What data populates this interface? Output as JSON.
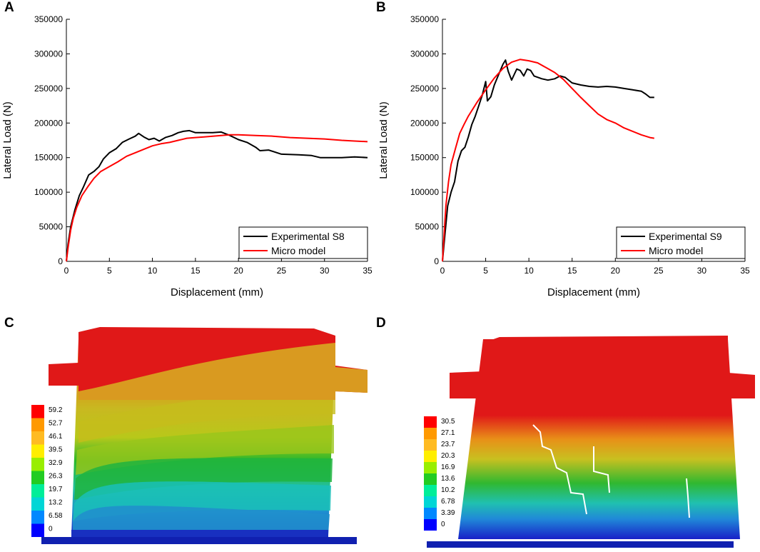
{
  "chart_data": [
    {
      "panel": "A",
      "type": "line",
      "xlabel": "Displacement (mm)",
      "ylabel": "Lateral Load (N)",
      "xlim": [
        0,
        35
      ],
      "ylim": [
        0,
        350000
      ],
      "xticks": [
        0,
        5,
        10,
        15,
        20,
        25,
        30,
        35
      ],
      "yticks": [
        0,
        50000,
        100000,
        150000,
        200000,
        250000,
        300000,
        350000
      ],
      "legend_position": "bottom-right",
      "series": [
        {
          "name": "Experimental S8",
          "color": "#000000",
          "points": [
            [
              0,
              0
            ],
            [
              0.2,
              25000
            ],
            [
              0.5,
              50000
            ],
            [
              1,
              75000
            ],
            [
              1.5,
              95000
            ],
            [
              2,
              108000
            ],
            [
              2.6,
              125000
            ],
            [
              3.2,
              130000
            ],
            [
              3.8,
              137000
            ],
            [
              4.3,
              148000
            ],
            [
              5,
              157000
            ],
            [
              5.8,
              163000
            ],
            [
              6.5,
              172000
            ],
            [
              7.3,
              177000
            ],
            [
              8,
              181000
            ],
            [
              8.4,
              185000
            ],
            [
              9,
              180000
            ],
            [
              9.6,
              176000
            ],
            [
              10.2,
              178000
            ],
            [
              10.8,
              174000
            ],
            [
              11.5,
              179000
            ],
            [
              12.3,
              182000
            ],
            [
              13,
              186000
            ],
            [
              13.6,
              188000
            ],
            [
              14.3,
              189000
            ],
            [
              15,
              186000
            ],
            [
              16,
              186000
            ],
            [
              17,
              186000
            ],
            [
              18,
              187000
            ],
            [
              19,
              182000
            ],
            [
              20,
              176000
            ],
            [
              21,
              172000
            ],
            [
              22,
              165000
            ],
            [
              22.5,
              160000
            ],
            [
              23.5,
              161000
            ],
            [
              25,
              155000
            ],
            [
              27,
              154000
            ],
            [
              28.5,
              153000
            ],
            [
              29.5,
              150000
            ],
            [
              30.5,
              150000
            ],
            [
              32,
              150000
            ],
            [
              33.5,
              151000
            ],
            [
              35,
              150000
            ]
          ]
        },
        {
          "name": "Micro model",
          "color": "#ff0000",
          "points": [
            [
              0,
              0
            ],
            [
              0.2,
              20000
            ],
            [
              0.5,
              45000
            ],
            [
              0.8,
              62000
            ],
            [
              1.2,
              78000
            ],
            [
              1.8,
              95000
            ],
            [
              2.5,
              108000
            ],
            [
              3.2,
              120000
            ],
            [
              4,
              130000
            ],
            [
              5,
              137000
            ],
            [
              6,
              144000
            ],
            [
              7,
              152000
            ],
            [
              8,
              157000
            ],
            [
              9,
              162000
            ],
            [
              10,
              167000
            ],
            [
              11,
              170000
            ],
            [
              12,
              172000
            ],
            [
              13,
              175000
            ],
            [
              14,
              178000
            ],
            [
              15,
              179000
            ],
            [
              16,
              180000
            ],
            [
              17,
              181000
            ],
            [
              18,
              182000
            ],
            [
              19,
              183000
            ],
            [
              20,
              183000
            ],
            [
              22,
              182000
            ],
            [
              24,
              181000
            ],
            [
              26,
              179000
            ],
            [
              28,
              178000
            ],
            [
              30,
              177000
            ],
            [
              32,
              175000
            ],
            [
              33.5,
              174000
            ],
            [
              35,
              173000
            ]
          ]
        }
      ]
    },
    {
      "panel": "B",
      "type": "line",
      "xlabel": "Displacement (mm)",
      "ylabel": "Lateral Load (N)",
      "xlim": [
        0,
        35
      ],
      "ylim": [
        0,
        350000
      ],
      "xticks": [
        0,
        5,
        10,
        15,
        20,
        25,
        30,
        35
      ],
      "yticks": [
        0,
        50000,
        100000,
        150000,
        200000,
        250000,
        300000,
        350000
      ],
      "legend_position": "bottom-right",
      "series": [
        {
          "name": "Experimental S9",
          "color": "#000000",
          "points": [
            [
              0,
              0
            ],
            [
              0.3,
              40000
            ],
            [
              0.6,
              80000
            ],
            [
              1,
              100000
            ],
            [
              1.4,
              115000
            ],
            [
              1.8,
              145000
            ],
            [
              2.2,
              160000
            ],
            [
              2.6,
              165000
            ],
            [
              3,
              180000
            ],
            [
              3.4,
              198000
            ],
            [
              3.8,
              210000
            ],
            [
              4.2,
              225000
            ],
            [
              4.6,
              240000
            ],
            [
              5,
              260000
            ],
            [
              5.2,
              232000
            ],
            [
              5.6,
              238000
            ],
            [
              6,
              255000
            ],
            [
              6.5,
              270000
            ],
            [
              7,
              285000
            ],
            [
              7.3,
              291000
            ],
            [
              7.6,
              275000
            ],
            [
              8,
              262000
            ],
            [
              8.3,
              270000
            ],
            [
              8.6,
              278000
            ],
            [
              9,
              276000
            ],
            [
              9.4,
              268000
            ],
            [
              9.8,
              278000
            ],
            [
              10.2,
              276000
            ],
            [
              10.6,
              268000
            ],
            [
              11.5,
              264000
            ],
            [
              12.2,
              262000
            ],
            [
              13,
              264000
            ],
            [
              13.6,
              268000
            ],
            [
              14.2,
              266000
            ],
            [
              15,
              258000
            ],
            [
              16,
              255000
            ],
            [
              17,
              253000
            ],
            [
              18,
              252000
            ],
            [
              19,
              253000
            ],
            [
              20,
              252000
            ],
            [
              21,
              250000
            ],
            [
              22,
              248000
            ],
            [
              23,
              246000
            ],
            [
              23.5,
              242000
            ],
            [
              24,
              237000
            ],
            [
              24.5,
              237000
            ]
          ]
        },
        {
          "name": "Micro model",
          "color": "#ff0000",
          "points": [
            [
              0,
              0
            ],
            [
              0.2,
              40000
            ],
            [
              0.4,
              80000
            ],
            [
              0.7,
              115000
            ],
            [
              1,
              140000
            ],
            [
              1.5,
              163000
            ],
            [
              2,
              185000
            ],
            [
              2.5,
              198000
            ],
            [
              3,
              210000
            ],
            [
              4,
              230000
            ],
            [
              5,
              248000
            ],
            [
              6,
              265000
            ],
            [
              7,
              279000
            ],
            [
              8,
              288000
            ],
            [
              9,
              292000
            ],
            [
              10,
              290000
            ],
            [
              11,
              287000
            ],
            [
              12,
              280000
            ],
            [
              13,
              273000
            ],
            [
              14,
              263000
            ],
            [
              15,
              250000
            ],
            [
              16,
              237000
            ],
            [
              17,
              225000
            ],
            [
              18,
              213000
            ],
            [
              19,
              205000
            ],
            [
              20,
              200000
            ],
            [
              21,
              193000
            ],
            [
              22,
              188000
            ],
            [
              23,
              183000
            ],
            [
              24,
              179000
            ],
            [
              24.5,
              178000
            ]
          ]
        }
      ]
    }
  ],
  "contours": [
    {
      "panel": "C",
      "legend_values": [
        "59.2",
        "52.7",
        "46.1",
        "39.5",
        "32.9",
        "26.3",
        "19.7",
        "13.2",
        "6.58",
        "0"
      ],
      "legend_colors": [
        "#ff0000",
        "#ff9900",
        "#ffbb22",
        "#ffee00",
        "#99ee00",
        "#22cc22",
        "#00ee99",
        "#00d6d6",
        "#0088ff",
        "#0000ff"
      ]
    },
    {
      "panel": "D",
      "legend_values": [
        "30.5",
        "27.1",
        "23.7",
        "20.3",
        "16.9",
        "13.6",
        "10.2",
        "6.78",
        "3.39",
        "0"
      ],
      "legend_colors": [
        "#ff0000",
        "#ff9900",
        "#ffbb22",
        "#ffee00",
        "#99ee00",
        "#22cc22",
        "#00ee99",
        "#00d6d6",
        "#0088ff",
        "#0000ff"
      ]
    }
  ],
  "panel_labels": {
    "A": "A",
    "B": "B",
    "C": "C",
    "D": "D"
  }
}
